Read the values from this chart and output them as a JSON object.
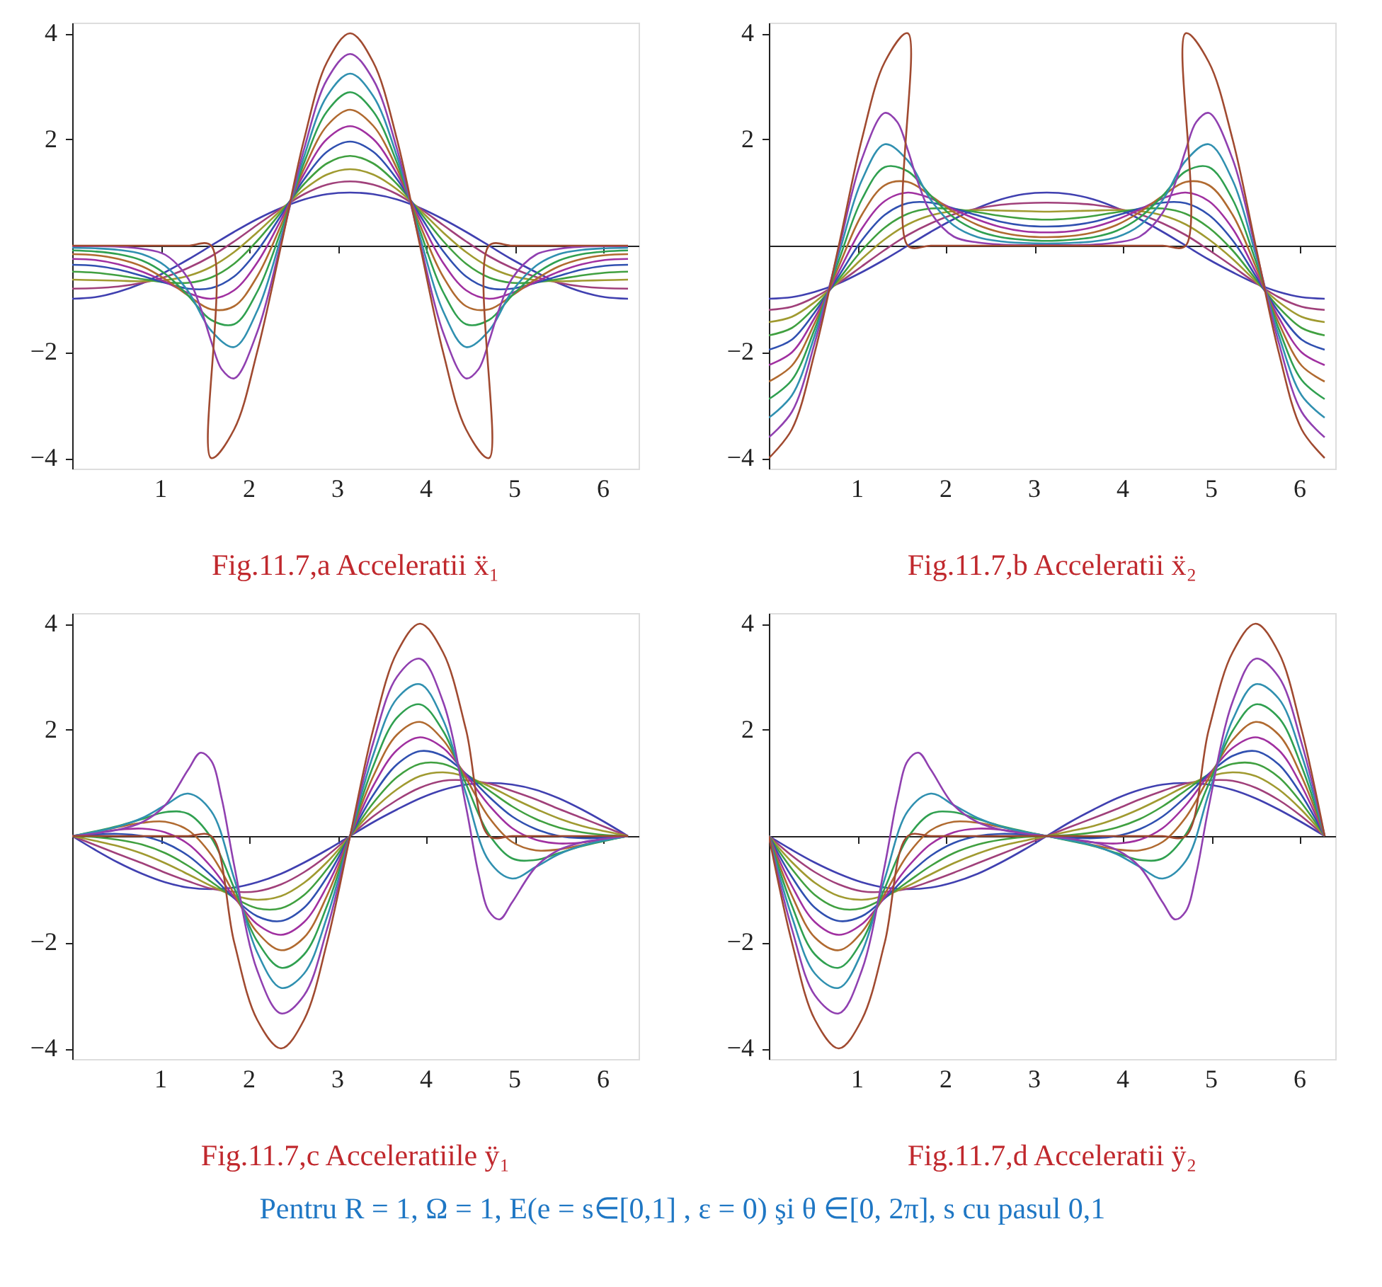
{
  "chart_data": [
    {
      "type": "line",
      "title": "Fig.11.7,a  Acceleratii ẍ₁",
      "x": [
        0,
        0.26,
        0.52,
        0.79,
        1.05,
        1.31,
        1.57,
        1.83,
        2.09,
        2.36,
        2.62,
        2.88,
        3.14,
        3.4,
        3.67,
        3.93,
        4.19,
        4.45,
        4.71,
        4.97,
        5.24,
        5.5,
        5.76,
        6.02,
        6.28
      ],
      "xlim": [
        0,
        6.4
      ],
      "ylim": [
        -4.2,
        4.2
      ],
      "xticks": [
        1,
        2,
        3,
        4,
        5,
        6
      ],
      "yticks": [
        -4,
        -2,
        2,
        4
      ],
      "series": [
        {
          "color": "#4040b0",
          "values": [
            -1,
            -0.97,
            -0.87,
            -0.71,
            -0.5,
            -0.26,
            0,
            0.26,
            0.5,
            0.71,
            0.87,
            0.97,
            1,
            0.97,
            0.87,
            0.71,
            0.5,
            0.26,
            0,
            -0.26,
            -0.5,
            -0.71,
            -0.87,
            -0.97,
            -1
          ]
        },
        {
          "color": "#a0407a",
          "values": [
            -0.81,
            -0.8,
            -0.77,
            -0.7,
            -0.59,
            -0.42,
            -0.2,
            0.08,
            0.39,
            0.7,
            0.97,
            1.15,
            1.21,
            1.15,
            0.97,
            0.7,
            0.39,
            0.08,
            -0.2,
            -0.42,
            -0.59,
            -0.7,
            -0.77,
            -0.8,
            -0.81
          ]
        },
        {
          "color": "#a09a30",
          "values": [
            -0.64,
            -0.65,
            -0.66,
            -0.67,
            -0.65,
            -0.57,
            -0.4,
            -0.12,
            0.25,
            0.67,
            1.06,
            1.34,
            1.44,
            1.34,
            1.06,
            0.67,
            0.25,
            -0.12,
            -0.4,
            -0.57,
            -0.65,
            -0.67,
            -0.66,
            -0.65,
            -0.64
          ]
        },
        {
          "color": "#40a040",
          "values": [
            -0.49,
            -0.51,
            -0.56,
            -0.63,
            -0.69,
            -0.7,
            -0.6,
            -0.34,
            0.09,
            0.63,
            1.16,
            1.55,
            1.69,
            1.55,
            1.16,
            0.63,
            0.09,
            -0.34,
            -0.6,
            -0.7,
            -0.69,
            -0.63,
            -0.56,
            -0.51,
            -0.49
          ]
        },
        {
          "color": "#3050b0",
          "values": [
            -0.36,
            -0.38,
            -0.45,
            -0.57,
            -0.7,
            -0.81,
            -0.8,
            -0.58,
            -0.1,
            0.57,
            1.25,
            1.77,
            1.96,
            1.77,
            1.25,
            0.57,
            -0.1,
            -0.58,
            -0.8,
            -0.81,
            -0.7,
            -0.57,
            -0.45,
            -0.38,
            -0.36
          ]
        },
        {
          "color": "#a030a0",
          "values": [
            -0.25,
            -0.27,
            -0.35,
            -0.49,
            -0.68,
            -0.89,
            -1,
            -0.84,
            -0.32,
            0.49,
            1.35,
            2.01,
            2.25,
            2.01,
            1.35,
            0.49,
            -0.32,
            -0.84,
            -1,
            -0.89,
            -0.68,
            -0.49,
            -0.35,
            -0.27,
            -0.25
          ]
        },
        {
          "color": "#b06a30",
          "values": [
            -0.16,
            -0.18,
            -0.25,
            -0.39,
            -0.63,
            -0.94,
            -1.2,
            -1.14,
            -0.58,
            0.39,
            1.45,
            2.26,
            2.56,
            2.26,
            1.45,
            0.39,
            -0.58,
            -1.14,
            -1.2,
            -0.94,
            -0.63,
            -0.39,
            -0.25,
            -0.18,
            -0.16
          ]
        },
        {
          "color": "#30a050",
          "values": [
            -0.09,
            -0.11,
            -0.16,
            -0.28,
            -0.53,
            -0.94,
            -1.4,
            -1.48,
            -0.87,
            0.28,
            1.56,
            2.53,
            2.89,
            2.53,
            1.56,
            0.28,
            -0.87,
            -1.48,
            -1.4,
            -0.94,
            -0.53,
            -0.28,
            -0.16,
            -0.11,
            -0.09
          ]
        },
        {
          "color": "#3090b0",
          "values": [
            -0.04,
            -0.05,
            -0.08,
            -0.16,
            -0.38,
            -0.86,
            -1.6,
            -1.91,
            -1.23,
            0.16,
            1.68,
            2.82,
            3.24,
            2.82,
            1.68,
            0.16,
            -1.23,
            -1.91,
            -1.6,
            -0.86,
            -0.38,
            -0.16,
            -0.08,
            -0.05,
            -0.04
          ]
        },
        {
          "color": "#9040b0",
          "x": [
            0,
            0.26,
            0.52,
            0.79,
            1.05,
            1.31,
            1.45,
            1.57,
            1.69,
            1.83,
            2.09,
            2.36,
            2.62,
            2.88,
            3.14,
            3.4,
            3.67,
            3.93,
            4.19,
            4.45,
            4.59,
            4.71,
            4.83,
            4.97,
            5.24,
            5.5,
            5.76,
            6.02,
            6.28
          ],
          "values": [
            -0.01,
            -0.01,
            -0.02,
            -0.06,
            -0.17,
            -0.62,
            -1.17,
            -1.8,
            -2.33,
            -2.5,
            -1.63,
            0.06,
            1.82,
            3.13,
            3.61,
            3.13,
            1.82,
            0.06,
            -1.63,
            -2.5,
            -2.33,
            -1.8,
            -1.17,
            -0.62,
            -0.17,
            -0.06,
            -0.02,
            -0.01,
            -0.01
          ]
        },
        {
          "color": "#a04a30",
          "x": [
            0,
            0.26,
            0.52,
            0.79,
            1.05,
            1.31,
            1.57,
            1.57,
            1.83,
            2.09,
            2.36,
            2.62,
            2.88,
            3.14,
            3.4,
            3.67,
            3.93,
            4.19,
            4.45,
            4.71,
            4.71,
            4.97,
            5.24,
            5.5,
            5.76,
            6.02,
            6.28
          ],
          "values": [
            0,
            0,
            0,
            0,
            0,
            0,
            0,
            -4,
            -3.46,
            -2,
            0,
            2,
            3.46,
            4,
            3.46,
            2,
            0,
            -2,
            -3.46,
            -4,
            0,
            0,
            0,
            0,
            0,
            0,
            0
          ]
        }
      ]
    },
    {
      "type": "line",
      "title": "Fig.11.7,b   Acceleratii ẍ₂",
      "x": [
        0,
        0.26,
        0.52,
        0.79,
        1.05,
        1.31,
        1.57,
        1.83,
        2.09,
        2.36,
        2.62,
        2.88,
        3.14,
        3.4,
        3.67,
        3.93,
        4.19,
        4.45,
        4.71,
        4.97,
        5.24,
        5.5,
        5.76,
        6.02,
        6.28
      ],
      "xlim": [
        0,
        6.4
      ],
      "ylim": [
        -4.2,
        4.2
      ],
      "xticks": [
        1,
        2,
        3,
        4,
        5,
        6
      ],
      "yticks": [
        -4,
        -2,
        2,
        4
      ],
      "series": [
        {
          "color": "#4040b0",
          "values": [
            -1,
            -0.97,
            -0.87,
            -0.71,
            -0.5,
            -0.26,
            0,
            0.26,
            0.5,
            0.71,
            0.87,
            0.97,
            1,
            0.97,
            0.87,
            0.71,
            0.5,
            0.26,
            0,
            -0.26,
            -0.5,
            -0.71,
            -0.87,
            -0.97,
            -1
          ]
        },
        {
          "color": "#a0407a",
          "values": [
            -1.21,
            -1.15,
            -0.97,
            -0.7,
            -0.39,
            -0.08,
            0.2,
            0.42,
            0.59,
            0.7,
            0.77,
            0.8,
            0.81,
            0.8,
            0.77,
            0.7,
            0.59,
            0.42,
            0.2,
            -0.08,
            -0.39,
            -0.7,
            -0.97,
            -1.15,
            -1.21
          ]
        },
        {
          "color": "#a09a30",
          "values": [
            -1.44,
            -1.34,
            -1.06,
            -0.67,
            -0.25,
            0.12,
            0.4,
            0.57,
            0.65,
            0.67,
            0.66,
            0.65,
            0.64,
            0.65,
            0.66,
            0.67,
            0.65,
            0.57,
            0.4,
            0.12,
            -0.25,
            -0.67,
            -1.06,
            -1.34,
            -1.44
          ]
        },
        {
          "color": "#40a040",
          "values": [
            -1.69,
            -1.55,
            -1.16,
            -0.63,
            -0.09,
            0.34,
            0.6,
            0.7,
            0.69,
            0.63,
            0.56,
            0.51,
            0.49,
            0.51,
            0.56,
            0.63,
            0.69,
            0.7,
            0.6,
            0.34,
            -0.09,
            -0.63,
            -1.16,
            -1.55,
            -1.69
          ]
        },
        {
          "color": "#3050b0",
          "values": [
            -1.96,
            -1.77,
            -1.25,
            -0.57,
            0.1,
            0.58,
            0.8,
            0.81,
            0.7,
            0.57,
            0.45,
            0.38,
            0.36,
            0.38,
            0.45,
            0.57,
            0.7,
            0.81,
            0.8,
            0.58,
            0.1,
            -0.57,
            -1.25,
            -1.77,
            -1.96
          ]
        },
        {
          "color": "#a030a0",
          "values": [
            -2.25,
            -2.01,
            -1.35,
            -0.49,
            0.32,
            0.84,
            1,
            0.89,
            0.68,
            0.49,
            0.35,
            0.27,
            0.25,
            0.27,
            0.35,
            0.49,
            0.68,
            0.89,
            1,
            0.84,
            0.32,
            -0.49,
            -1.35,
            -2.01,
            -2.25
          ]
        },
        {
          "color": "#b06a30",
          "values": [
            -2.56,
            -2.26,
            -1.45,
            -0.39,
            0.58,
            1.14,
            1.2,
            0.94,
            0.63,
            0.39,
            0.25,
            0.18,
            0.16,
            0.18,
            0.25,
            0.39,
            0.63,
            0.94,
            1.2,
            1.14,
            0.58,
            -0.39,
            -1.45,
            -2.26,
            -2.56
          ]
        },
        {
          "color": "#30a050",
          "values": [
            -2.89,
            -2.53,
            -1.56,
            -0.28,
            0.87,
            1.48,
            1.4,
            0.94,
            0.53,
            0.28,
            0.16,
            0.11,
            0.09,
            0.11,
            0.16,
            0.28,
            0.53,
            0.94,
            1.4,
            1.48,
            0.87,
            -0.28,
            -1.56,
            -2.53,
            -2.89
          ]
        },
        {
          "color": "#3090b0",
          "values": [
            -3.24,
            -2.82,
            -1.68,
            -0.16,
            1.23,
            1.91,
            1.6,
            0.86,
            0.38,
            0.16,
            0.08,
            0.05,
            0.04,
            0.05,
            0.08,
            0.16,
            0.38,
            0.86,
            1.6,
            1.91,
            1.23,
            -0.16,
            -1.68,
            -2.82,
            -3.24
          ]
        },
        {
          "color": "#9040b0",
          "x": [
            0,
            0.26,
            0.52,
            0.79,
            1.05,
            1.31,
            1.45,
            1.57,
            1.69,
            1.83,
            2.09,
            2.36,
            2.62,
            2.88,
            3.14,
            3.4,
            3.67,
            3.93,
            4.19,
            4.45,
            4.59,
            4.71,
            4.83,
            4.97,
            5.24,
            5.5,
            5.76,
            6.02,
            6.28
          ],
          "values": [
            -3.61,
            -3.13,
            -1.82,
            -0.06,
            1.63,
            2.5,
            2.33,
            1.8,
            1.17,
            0.62,
            0.17,
            0.06,
            0.02,
            0.01,
            0.01,
            0.01,
            0.02,
            0.06,
            0.17,
            0.62,
            1.17,
            1.8,
            2.33,
            2.5,
            1.63,
            -0.06,
            -1.82,
            -3.13,
            -3.61
          ]
        },
        {
          "color": "#a04a30",
          "x": [
            0,
            0.26,
            0.52,
            0.79,
            1.05,
            1.31,
            1.57,
            1.57,
            1.83,
            2.09,
            2.36,
            2.62,
            2.88,
            3.14,
            3.4,
            3.67,
            3.93,
            4.19,
            4.45,
            4.71,
            4.71,
            4.97,
            5.24,
            5.5,
            5.76,
            6.02,
            6.28
          ],
          "values": [
            -4,
            -3.46,
            -2,
            0,
            2,
            3.46,
            4,
            0,
            0,
            0,
            0,
            0,
            0,
            0,
            0,
            0,
            0,
            0,
            0,
            0,
            4,
            3.46,
            2,
            0,
            -2,
            -3.46,
            -4
          ]
        }
      ]
    },
    {
      "type": "line",
      "title": "Fig.11.7,c  Acceleratiile ÿ₁",
      "x": [
        0,
        0.26,
        0.52,
        0.79,
        1.05,
        1.31,
        1.57,
        1.83,
        2.09,
        2.36,
        2.62,
        2.88,
        3.14,
        3.4,
        3.67,
        3.93,
        4.19,
        4.45,
        4.71,
        4.97,
        5.24,
        5.5,
        5.76,
        6.02,
        6.28
      ],
      "xlim": [
        0,
        6.4
      ],
      "ylim": [
        -4.2,
        4.2
      ],
      "xticks": [
        1,
        2,
        3,
        4,
        5,
        6
      ],
      "yticks": [
        -4,
        -2,
        2,
        4
      ],
      "series": [
        {
          "color": "#4040b0",
          "values": [
            0,
            -0.26,
            -0.5,
            -0.71,
            -0.87,
            -0.97,
            -1,
            -0.97,
            -0.87,
            -0.71,
            -0.5,
            -0.26,
            0,
            0.26,
            0.5,
            0.71,
            0.87,
            0.97,
            1,
            0.97,
            0.87,
            0.71,
            0.5,
            0.26,
            0
          ]
        },
        {
          "color": "#a0407a",
          "values": [
            0,
            -0.17,
            -0.34,
            -0.51,
            -0.69,
            -0.85,
            -0.99,
            -1.05,
            -1.04,
            -0.91,
            -0.68,
            -0.37,
            0,
            0.37,
            0.68,
            0.91,
            1.04,
            1.05,
            0.99,
            0.85,
            0.69,
            0.51,
            0.34,
            0.17,
            0
          ]
        },
        {
          "color": "#a09a30",
          "values": [
            0,
            -0.09,
            -0.19,
            -0.33,
            -0.51,
            -0.72,
            -0.94,
            -1.12,
            -1.2,
            -1.13,
            -0.88,
            -0.49,
            0,
            0.49,
            0.88,
            1.13,
            1.2,
            1.12,
            0.94,
            0.72,
            0.51,
            0.33,
            0.19,
            0.09,
            0
          ]
        },
        {
          "color": "#40a040",
          "values": [
            0,
            -0.02,
            -0.07,
            -0.16,
            -0.32,
            -0.56,
            -0.86,
            -1.16,
            -1.36,
            -1.36,
            -1.11,
            -0.62,
            0,
            0.62,
            1.11,
            1.36,
            1.36,
            1.16,
            0.86,
            0.56,
            0.32,
            0.16,
            0.07,
            0.02,
            0
          ]
        },
        {
          "color": "#3050b0",
          "values": [
            0,
            0.03,
            0.04,
            0,
            -0.13,
            -0.37,
            -0.74,
            -1.17,
            -1.51,
            -1.6,
            -1.35,
            -0.77,
            0,
            0.77,
            1.35,
            1.6,
            1.51,
            1.17,
            0.74,
            0.37,
            0.13,
            0,
            -0.04,
            -0.03,
            0
          ]
        },
        {
          "color": "#a030a0",
          "values": [
            0,
            0.06,
            0.12,
            0.14,
            0.07,
            -0.15,
            -0.58,
            -1.15,
            -1.66,
            -1.86,
            -1.62,
            -0.94,
            0,
            0.94,
            1.62,
            1.86,
            1.66,
            1.15,
            0.58,
            0.15,
            -0.07,
            -0.14,
            -0.12,
            -0.06,
            0
          ]
        },
        {
          "color": "#b06a30",
          "values": [
            0,
            0.08,
            0.17,
            0.25,
            0.27,
            0.11,
            -0.35,
            -1.09,
            -1.81,
            -2.15,
            -1.91,
            -1.12,
            0,
            1.12,
            1.91,
            2.15,
            1.81,
            1.09,
            0.35,
            -0.11,
            -0.27,
            -0.25,
            -0.17,
            -0.08,
            0
          ]
        },
        {
          "color": "#30a050",
          "values": [
            0,
            0.09,
            0.19,
            0.32,
            0.45,
            0.42,
            -0.03,
            -0.98,
            -1.98,
            -2.48,
            -2.23,
            -1.31,
            0,
            1.31,
            2.23,
            2.48,
            1.98,
            0.98,
            0.03,
            -0.42,
            -0.45,
            -0.32,
            -0.19,
            -0.09,
            0
          ]
        },
        {
          "color": "#3090b0",
          "values": [
            0,
            0.08,
            0.18,
            0.34,
            0.58,
            0.8,
            0.47,
            -0.8,
            -2.19,
            -2.86,
            -2.59,
            -1.52,
            0,
            1.52,
            2.59,
            2.86,
            2.19,
            0.8,
            -0.47,
            -0.8,
            -0.58,
            -0.34,
            -0.18,
            -0.08,
            0
          ]
        },
        {
          "color": "#9040b0",
          "x": [
            0,
            0.26,
            0.52,
            0.79,
            1.05,
            1.31,
            1.45,
            1.57,
            1.69,
            1.83,
            2.09,
            2.36,
            2.62,
            2.88,
            3.14,
            3.4,
            3.67,
            3.93,
            4.19,
            4.45,
            4.59,
            4.71,
            4.83,
            4.97,
            5.24,
            5.5,
            5.76,
            6.02,
            6.28
          ],
          "values": [
            0,
            0.05,
            0.12,
            0.26,
            0.58,
            1.25,
            1.57,
            1.42,
            0.7,
            -0.55,
            -2.53,
            -3.34,
            -3,
            -1.75,
            0,
            1.75,
            3,
            3.34,
            2.53,
            0.55,
            -0.7,
            -1.42,
            -1.57,
            -1.25,
            -0.58,
            -0.26,
            -0.12,
            -0.05,
            0
          ]
        },
        {
          "color": "#a04a30",
          "values": [
            0,
            0,
            0,
            0,
            0,
            0,
            0,
            -2,
            -3.46,
            -4,
            -3.46,
            -2,
            0,
            2,
            3.46,
            4,
            3.46,
            2,
            0,
            0,
            0,
            0,
            0,
            0,
            0
          ]
        }
      ]
    },
    {
      "type": "line",
      "title": "Fig.11.7,d  Acceleratii ÿ₂",
      "x": [
        0,
        0.26,
        0.52,
        0.79,
        1.05,
        1.31,
        1.57,
        1.83,
        2.09,
        2.36,
        2.62,
        2.88,
        3.14,
        3.4,
        3.67,
        3.93,
        4.19,
        4.45,
        4.71,
        4.97,
        5.24,
        5.5,
        5.76,
        6.02,
        6.28
      ],
      "xlim": [
        0,
        6.4
      ],
      "ylim": [
        -4.2,
        4.2
      ],
      "xticks": [
        1,
        2,
        3,
        4,
        5,
        6
      ],
      "yticks": [
        -4,
        -2,
        2,
        4
      ],
      "annotations": [
        "Pentru R = 1, Ω = 1, E(e = s∈[0,1] , ε = 0) şi θ ∈[0, 2π], s cu pasul 0,1"
      ],
      "series": [
        {
          "color": "#4040b0",
          "values": [
            0,
            -0.26,
            -0.5,
            -0.71,
            -0.87,
            -0.97,
            -1,
            -0.97,
            -0.87,
            -0.71,
            -0.5,
            -0.26,
            0,
            0.26,
            0.5,
            0.71,
            0.87,
            0.97,
            1,
            0.97,
            0.87,
            0.71,
            0.5,
            0.26,
            0
          ]
        },
        {
          "color": "#a0407a",
          "values": [
            0,
            -0.37,
            -0.68,
            -0.91,
            -1.04,
            -1.05,
            -0.99,
            -0.85,
            -0.69,
            -0.51,
            -0.34,
            -0.17,
            0,
            0.17,
            0.34,
            0.51,
            0.69,
            0.85,
            0.99,
            1.05,
            1.04,
            0.91,
            0.68,
            0.37,
            0
          ]
        },
        {
          "color": "#a09a30",
          "values": [
            0,
            -0.49,
            -0.88,
            -1.13,
            -1.2,
            -1.12,
            -0.94,
            -0.72,
            -0.51,
            -0.33,
            -0.19,
            -0.09,
            0,
            0.09,
            0.19,
            0.33,
            0.51,
            0.72,
            0.94,
            1.12,
            1.2,
            1.13,
            0.88,
            0.49,
            0
          ]
        },
        {
          "color": "#40a040",
          "values": [
            0,
            -0.62,
            -1.11,
            -1.36,
            -1.36,
            -1.16,
            -0.86,
            -0.56,
            -0.32,
            -0.16,
            -0.07,
            -0.02,
            0,
            0.02,
            0.07,
            0.16,
            0.32,
            0.56,
            0.86,
            1.16,
            1.36,
            1.36,
            1.11,
            0.62,
            0
          ]
        },
        {
          "color": "#3050b0",
          "values": [
            0,
            -0.77,
            -1.35,
            -1.6,
            -1.51,
            -1.17,
            -0.74,
            -0.37,
            -0.13,
            0,
            0.04,
            0.03,
            0,
            -0.03,
            -0.04,
            0,
            0.13,
            0.37,
            0.74,
            1.17,
            1.51,
            1.6,
            1.35,
            0.77,
            0
          ]
        },
        {
          "color": "#a030a0",
          "values": [
            0,
            -0.94,
            -1.62,
            -1.86,
            -1.66,
            -1.15,
            -0.58,
            -0.15,
            0.07,
            0.14,
            0.12,
            0.06,
            0,
            -0.06,
            -0.12,
            -0.14,
            -0.07,
            0.15,
            0.58,
            1.15,
            1.66,
            1.86,
            1.62,
            0.94,
            0
          ]
        },
        {
          "color": "#b06a30",
          "values": [
            0,
            -1.12,
            -1.91,
            -2.15,
            -1.81,
            -1.09,
            -0.35,
            0.11,
            0.27,
            0.25,
            0.17,
            0.08,
            0,
            -0.08,
            -0.17,
            -0.25,
            -0.27,
            -0.11,
            0.35,
            1.09,
            1.81,
            2.15,
            1.91,
            1.12,
            0
          ]
        },
        {
          "color": "#30a050",
          "values": [
            0,
            -1.31,
            -2.23,
            -2.48,
            -1.98,
            -0.98,
            -0.03,
            0.42,
            0.45,
            0.32,
            0.19,
            0.09,
            0,
            -0.09,
            -0.19,
            -0.32,
            -0.45,
            -0.42,
            0.03,
            0.98,
            1.98,
            2.48,
            2.23,
            1.31,
            0
          ]
        },
        {
          "color": "#3090b0",
          "values": [
            0,
            -1.52,
            -2.59,
            -2.86,
            -2.19,
            -0.8,
            0.47,
            0.8,
            0.58,
            0.34,
            0.18,
            0.08,
            0,
            -0.08,
            -0.18,
            -0.34,
            -0.58,
            -0.8,
            -0.47,
            0.8,
            2.19,
            2.86,
            2.59,
            1.52,
            0
          ]
        },
        {
          "color": "#9040b0",
          "x": [
            0,
            0.26,
            0.52,
            0.79,
            1.05,
            1.31,
            1.45,
            1.57,
            1.69,
            1.83,
            2.09,
            2.36,
            2.62,
            2.88,
            3.14,
            3.4,
            3.67,
            3.93,
            4.19,
            4.45,
            4.59,
            4.71,
            4.83,
            4.97,
            5.24,
            5.5,
            5.76,
            6.02,
            6.28
          ],
          "values": [
            0,
            -1.75,
            -3,
            -3.34,
            -2.53,
            -0.55,
            0.7,
            1.42,
            1.57,
            1.25,
            0.58,
            0.26,
            0.12,
            0.05,
            0,
            -0.05,
            -0.12,
            -0.26,
            -0.58,
            -1.25,
            -1.57,
            -1.42,
            -0.7,
            0.55,
            2.53,
            3.34,
            3,
            1.75,
            0
          ]
        },
        {
          "color": "#a04a30",
          "values": [
            0,
            -2,
            -3.46,
            -4,
            -3.46,
            -2,
            0,
            0,
            0,
            0,
            0,
            0,
            0,
            0,
            0,
            0,
            0,
            0,
            0,
            2,
            3.46,
            4,
            3.46,
            2,
            0
          ]
        }
      ]
    }
  ]
}
